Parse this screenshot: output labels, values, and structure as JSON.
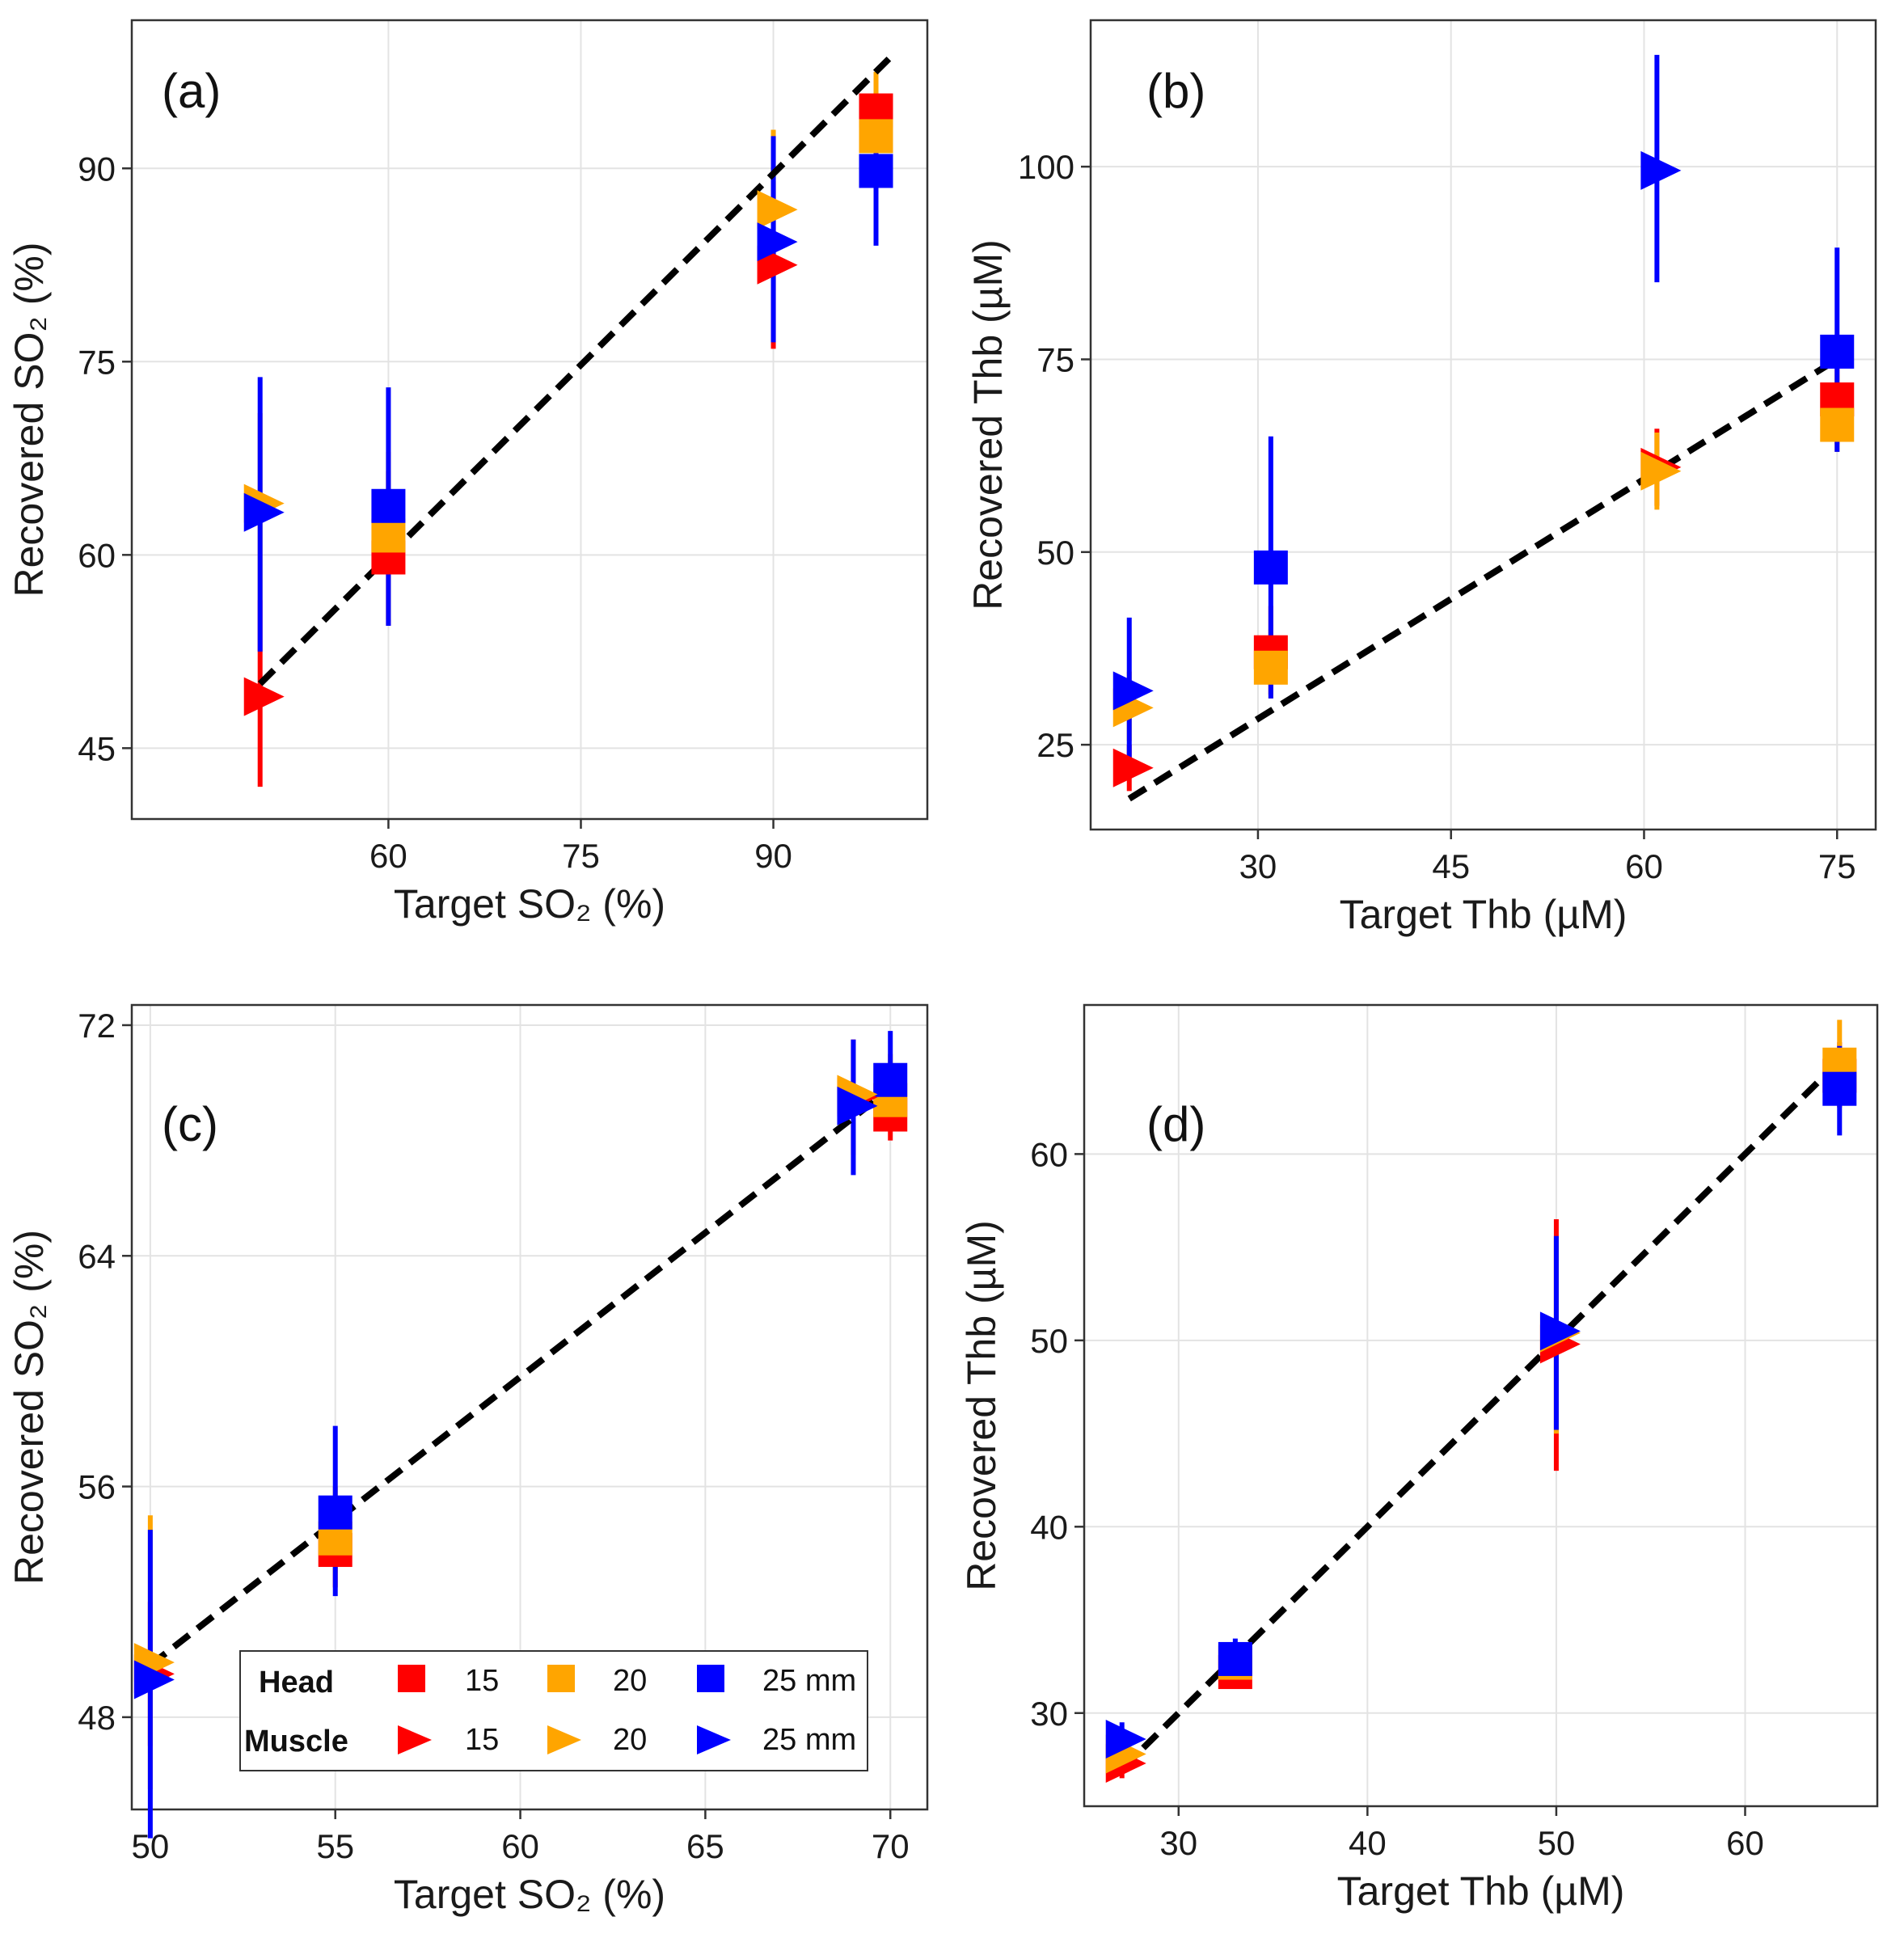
{
  "figure": {
    "background": "#ffffff"
  },
  "colors": {
    "15": "#ff0000",
    "20": "#ffa500",
    "25": "#0000ff"
  },
  "legend": {
    "head_label": "Head",
    "muscle_label": "Muscle",
    "entries": [
      "15",
      "20",
      "25 mm"
    ],
    "placement": "bottom-center of panel (c)"
  },
  "chart_data": [
    {
      "panel": "(a)",
      "type": "scatter",
      "xlabel": "Target SO₂ (%)",
      "ylabel": "Recovered SO₂ (%)",
      "xlim": [
        40,
        102
      ],
      "ylim": [
        39.5,
        101.5
      ],
      "xticks": [
        60,
        75,
        90
      ],
      "yticks": [
        45,
        60,
        75,
        90
      ],
      "identity_line": [
        [
          50,
          50
        ],
        [
          99,
          98.5
        ]
      ],
      "series": [
        {
          "group": "Head",
          "size": "15",
          "points": [
            {
              "x": 60,
              "y": 59.8,
              "lo": 54.5,
              "hi": 66.5
            },
            {
              "x": 98,
              "y": 94.5,
              "lo": 89.5,
              "hi": 97.0
            }
          ]
        },
        {
          "group": "Head",
          "size": "20",
          "points": [
            {
              "x": 60,
              "y": 61.5,
              "lo": 55.0,
              "hi": 68.0
            },
            {
              "x": 98,
              "y": 92.5,
              "lo": 88.0,
              "hi": 97.5
            }
          ]
        },
        {
          "group": "Head",
          "size": "25",
          "points": [
            {
              "x": 60,
              "y": 63.8,
              "lo": 54.5,
              "hi": 73.0
            },
            {
              "x": 98,
              "y": 89.8,
              "lo": 84.0,
              "hi": 95.5
            }
          ]
        },
        {
          "group": "Muscle",
          "size": "15",
          "points": [
            {
              "x": 50,
              "y": 49.0,
              "lo": 42.0,
              "hi": 56.5
            },
            {
              "x": 90,
              "y": 82.5,
              "lo": 76.0,
              "hi": 89.0
            }
          ]
        },
        {
          "group": "Muscle",
          "size": "20",
          "points": [
            {
              "x": 50,
              "y": 64.0,
              "lo": 56.5,
              "hi": 71.0
            },
            {
              "x": 90,
              "y": 86.8,
              "lo": 80.5,
              "hi": 93.0
            }
          ]
        },
        {
          "group": "Muscle",
          "size": "25",
          "points": [
            {
              "x": 50,
              "y": 63.3,
              "lo": 52.5,
              "hi": 73.8
            },
            {
              "x": 90,
              "y": 84.3,
              "lo": 76.5,
              "hi": 92.5
            }
          ]
        }
      ]
    },
    {
      "panel": "(b)",
      "type": "scatter",
      "xlabel": "Target Thb (µM)",
      "ylabel": "Recovered Thb (µM)",
      "xlim": [
        17,
        78
      ],
      "ylim": [
        14,
        119
      ],
      "xticks": [
        30,
        45,
        60,
        75
      ],
      "yticks": [
        25,
        50,
        75,
        100
      ],
      "identity_line": [
        [
          20,
          18
        ],
        [
          75,
          75
        ]
      ],
      "series": [
        {
          "group": "Head",
          "size": "15",
          "points": [
            {
              "x": 31,
              "y": 37.0,
              "lo": 31.5,
              "hi": 43.0
            },
            {
              "x": 75,
              "y": 69.8,
              "lo": 64.0,
              "hi": 75.0
            }
          ]
        },
        {
          "group": "Head",
          "size": "20",
          "points": [
            {
              "x": 31,
              "y": 35.0,
              "lo": 31.0,
              "hi": 40.0
            },
            {
              "x": 75,
              "y": 66.5,
              "lo": 63.0,
              "hi": 73.0
            }
          ]
        },
        {
          "group": "Head",
          "size": "25",
          "points": [
            {
              "x": 31,
              "y": 48.0,
              "lo": 31.0,
              "hi": 65.0
            },
            {
              "x": 75,
              "y": 76.0,
              "lo": 63.0,
              "hi": 89.5
            }
          ]
        },
        {
          "group": "Muscle",
          "size": "15",
          "points": [
            {
              "x": 20,
              "y": 22.0,
              "lo": 19.0,
              "hi": 25.0
            },
            {
              "x": 61,
              "y": 61.0,
              "lo": 56.0,
              "hi": 66.0
            }
          ]
        },
        {
          "group": "Muscle",
          "size": "20",
          "points": [
            {
              "x": 20,
              "y": 29.8,
              "lo": 25.5,
              "hi": 34.5
            },
            {
              "x": 61,
              "y": 60.5,
              "lo": 55.5,
              "hi": 65.5
            }
          ]
        },
        {
          "group": "Muscle",
          "size": "25",
          "points": [
            {
              "x": 20,
              "y": 32.0,
              "lo": 22.0,
              "hi": 41.5
            },
            {
              "x": 61,
              "y": 99.5,
              "lo": 85.0,
              "hi": 114.5
            }
          ]
        }
      ]
    },
    {
      "panel": "(c)",
      "type": "scatter",
      "xlabel": "Target SO₂ (%)",
      "ylabel": "Recovered SO₂ (%)",
      "xlim": [
        49.5,
        71.0
      ],
      "ylim": [
        44.8,
        72.7
      ],
      "xticks": [
        50,
        55,
        60,
        65,
        70
      ],
      "yticks": [
        48,
        56,
        64,
        72
      ],
      "identity_line": [
        [
          50,
          49.8
        ],
        [
          70,
          69.8
        ]
      ],
      "series": [
        {
          "group": "Head",
          "size": "15",
          "points": [
            {
              "x": 55,
              "y": 53.8,
              "lo": 52.5,
              "hi": 55.0
            },
            {
              "x": 70,
              "y": 68.9,
              "lo": 68.0,
              "hi": 70.0
            }
          ]
        },
        {
          "group": "Head",
          "size": "20",
          "points": [
            {
              "x": 55,
              "y": 54.2,
              "lo": 53.0,
              "hi": 56.0
            },
            {
              "x": 70,
              "y": 69.4,
              "lo": 68.5,
              "hi": 71.0
            }
          ]
        },
        {
          "group": "Head",
          "size": "25",
          "points": [
            {
              "x": 55,
              "y": 55.1,
              "lo": 52.2,
              "hi": 58.1
            },
            {
              "x": 70,
              "y": 70.1,
              "lo": 68.5,
              "hi": 71.8
            }
          ]
        },
        {
          "group": "Muscle",
          "size": "15",
          "points": [
            {
              "x": 50,
              "y": 49.5,
              "lo": 47.0,
              "hi": 52.0
            },
            {
              "x": 69,
              "y": 69.5,
              "lo": 67.5,
              "hi": 71.5
            }
          ]
        },
        {
          "group": "Muscle",
          "size": "20",
          "points": [
            {
              "x": 50,
              "y": 49.9,
              "lo": 45.5,
              "hi": 55.0
            },
            {
              "x": 69,
              "y": 69.6,
              "lo": 68.0,
              "hi": 71.3
            }
          ]
        },
        {
          "group": "Muscle",
          "size": "25",
          "points": [
            {
              "x": 50,
              "y": 49.3,
              "lo": 43.8,
              "hi": 54.5
            },
            {
              "x": 69,
              "y": 69.2,
              "lo": 66.8,
              "hi": 71.5
            }
          ]
        }
      ]
    },
    {
      "panel": "(d)",
      "type": "scatter",
      "xlabel": "Target Thb (µM)",
      "ylabel": "Recovered Thb (µM)",
      "xlim": [
        25,
        67
      ],
      "ylim": [
        25,
        68
      ],
      "xticks": [
        30,
        40,
        50,
        60
      ],
      "yticks": [
        30,
        40,
        50,
        60
      ],
      "identity_line": [
        [
          27,
          27
        ],
        [
          65,
          65
        ]
      ],
      "series": [
        {
          "group": "Head",
          "size": "15",
          "points": [
            {
              "x": 33,
              "y": 32.2,
              "lo": 31.5,
              "hi": 33.0
            },
            {
              "x": 65,
              "y": 64.2,
              "lo": 62.5,
              "hi": 66.0
            }
          ]
        },
        {
          "group": "Head",
          "size": "20",
          "points": [
            {
              "x": 33,
              "y": 32.7,
              "lo": 32.0,
              "hi": 33.5
            },
            {
              "x": 65,
              "y": 64.8,
              "lo": 62.5,
              "hi": 67.2
            }
          ]
        },
        {
          "group": "Head",
          "size": "25",
          "points": [
            {
              "x": 33,
              "y": 32.9,
              "lo": 31.5,
              "hi": 34.0
            },
            {
              "x": 65,
              "y": 63.5,
              "lo": 61.0,
              "hi": 65.8
            }
          ]
        },
        {
          "group": "Muscle",
          "size": "15",
          "points": [
            {
              "x": 27,
              "y": 27.3,
              "lo": 26.5,
              "hi": 28.0
            },
            {
              "x": 50,
              "y": 49.8,
              "lo": 43.0,
              "hi": 56.5
            }
          ]
        },
        {
          "group": "Muscle",
          "size": "20",
          "points": [
            {
              "x": 27,
              "y": 27.8,
              "lo": 27.0,
              "hi": 28.5
            },
            {
              "x": 50,
              "y": 50.4,
              "lo": 45.0,
              "hi": 55.5
            }
          ]
        },
        {
          "group": "Muscle",
          "size": "25",
          "points": [
            {
              "x": 27,
              "y": 28.6,
              "lo": 27.5,
              "hi": 29.5
            },
            {
              "x": 50,
              "y": 50.5,
              "lo": 45.2,
              "hi": 55.6
            }
          ]
        }
      ]
    }
  ]
}
